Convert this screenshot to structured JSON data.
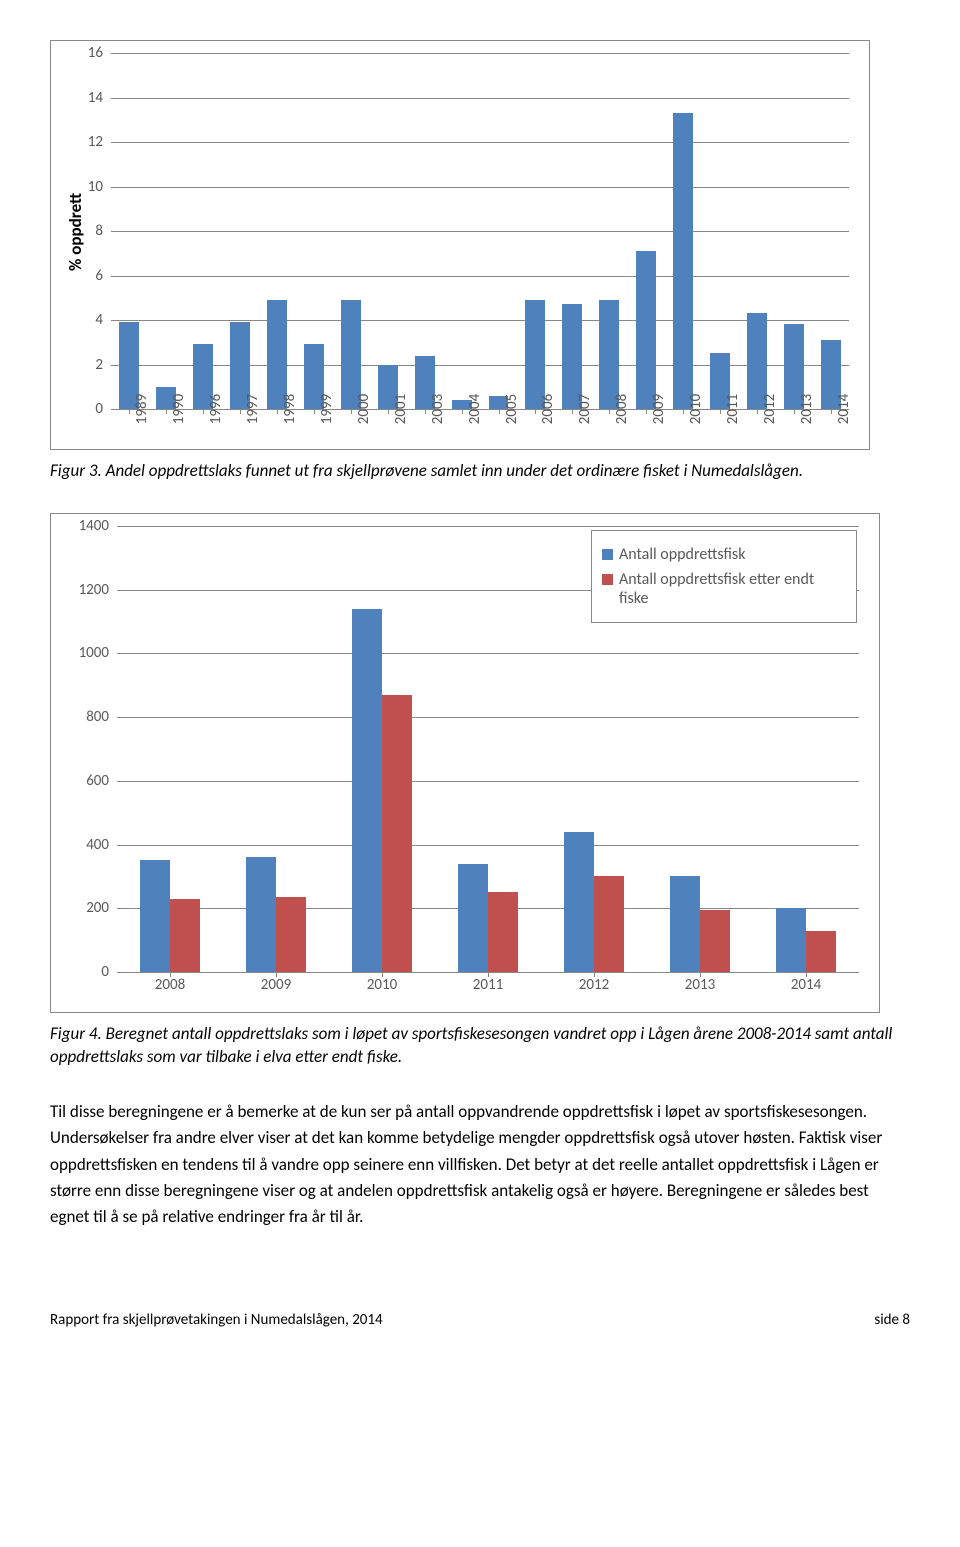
{
  "chart1": {
    "type": "bar",
    "y_axis_label": "% oppdrett",
    "y_ticks": [
      0,
      2,
      4,
      6,
      8,
      10,
      12,
      14,
      16
    ],
    "ylim": [
      0,
      16
    ],
    "categories": [
      "1989",
      "1990",
      "1996",
      "1997",
      "1998",
      "1999",
      "2000",
      "2001",
      "2003",
      "2004",
      "2005",
      "2006",
      "2007",
      "2008",
      "2009",
      "2010",
      "2011",
      "2012",
      "2013",
      "2014"
    ],
    "values": [
      3.9,
      1.0,
      2.9,
      3.9,
      4.9,
      2.9,
      4.9,
      2.0,
      2.4,
      0.4,
      0.6,
      4.9,
      4.7,
      4.9,
      7.1,
      13.3,
      2.5,
      4.3,
      3.8,
      3.1
    ],
    "bar_color": "#4f81bd",
    "grid_color": "#888888",
    "background_color": "#ffffff",
    "tick_fontsize": 15,
    "label_fontsize": 17
  },
  "caption1": "Figur 3. Andel oppdrettslaks funnet ut fra skjellprøvene samlet inn under det ordinære fisket i Numedalslågen.",
  "chart2": {
    "type": "grouped-bar",
    "y_ticks": [
      0,
      200,
      400,
      600,
      800,
      1000,
      1200,
      1400
    ],
    "ylim": [
      0,
      1400
    ],
    "categories": [
      "2008",
      "2009",
      "2010",
      "2011",
      "2012",
      "2013",
      "2014"
    ],
    "series": [
      {
        "label": "Antall oppdrettsfisk",
        "color": "#4f81bd",
        "values": [
          350,
          360,
          1140,
          340,
          440,
          300,
          200
        ]
      },
      {
        "label": "Antall oppdrettsfisk etter endt fiske",
        "color": "#c0504d",
        "values": [
          230,
          235,
          870,
          250,
          300,
          195,
          130
        ]
      }
    ],
    "grid_color": "#888888",
    "background_color": "#ffffff",
    "tick_fontsize": 15,
    "legend_fontsize": 16
  },
  "caption2": "Figur 4. Beregnet antall oppdrettslaks som i løpet av sportsfiskesesongen vandret opp i Lågen årene 2008-2014 samt antall oppdrettslaks som var tilbake i elva etter endt fiske.",
  "body_paragraph": "Til disse beregningene er å bemerke at de kun ser på antall oppvandrende oppdrettsfisk i løpet av sportsfiskesesongen. Undersøkelser fra andre elver viser at det kan komme betydelige mengder oppdrettsfisk også utover høsten. Faktisk viser oppdrettsfisken en tendens til å vandre opp seinere enn villfisken. Det betyr at det reelle antallet oppdrettsfisk i Lågen er større enn disse beregningene viser og at andelen oppdrettsfisk antakelig også er høyere. Beregningene er således best egnet til å se på relative endringer fra år til år.",
  "footer_left": "Rapport fra skjellprøvetakingen i Numedalslågen, 2014",
  "footer_right": "side 8"
}
